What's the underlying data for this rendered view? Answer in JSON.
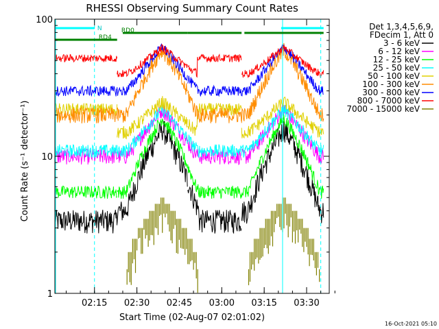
{
  "chart_data": {
    "type": "line",
    "title": "RHESSI Observing Summary Count Rates",
    "xlabel": "Start Time (02-Aug-07 02:01:02)",
    "ylabel": "Count Rate (s⁻¹ detector⁻¹)",
    "y_scale": "log",
    "ylim": [
      1,
      100
    ],
    "xlim_minutes": [
      0,
      97
    ],
    "x_ticks": [
      {
        "label": "02:15",
        "t": 14
      },
      {
        "label": "02:30",
        "t": 29
      },
      {
        "label": "02:45",
        "t": 44
      },
      {
        "label": "03:00",
        "t": 59
      },
      {
        "label": "03:15",
        "t": 74
      },
      {
        "label": "03:30",
        "t": 89
      }
    ],
    "y_ticks": [
      {
        "label": "1",
        "v": 1
      },
      {
        "label": "10",
        "v": 10
      },
      {
        "label": "100",
        "v": 100
      }
    ],
    "legend": {
      "placement": "right",
      "header": [
        "Det 1,3,4,5,6,9,",
        "FDecim 1, Att 0"
      ],
      "entries": [
        {
          "label": "3 - 6 keV",
          "color": "#000000"
        },
        {
          "label": "6 - 12 keV",
          "color": "#ff00ff"
        },
        {
          "label": "12 - 25 keV",
          "color": "#00ff00"
        },
        {
          "label": "25 - 50 keV",
          "color": "#00ffff"
        },
        {
          "label": "50 - 100 keV",
          "color": "#e0d000"
        },
        {
          "label": "100 - 300 keV",
          "color": "#ff8c00"
        },
        {
          "label": "300 - 800 keV",
          "color": "#0000ff"
        },
        {
          "label": "800 - 7000 keV",
          "color": "#ff0000"
        },
        {
          "label": "7000 - 15000 keV",
          "color": "#808000"
        }
      ]
    },
    "series_shape": {
      "peaks_minutes": [
        38,
        81
      ],
      "orbit_segments": [
        [
          0,
          22
        ],
        [
          22,
          47
        ],
        [
          47,
          66
        ],
        [
          66,
          95
        ]
      ]
    },
    "series": [
      {
        "name": "3 - 6 keV",
        "color": "#000000",
        "night_value": 3.4,
        "base_value": 4,
        "peak_value": 16,
        "noise": 0.09
      },
      {
        "name": "6 - 12 keV",
        "color": "#ff00ff",
        "night_value": 10,
        "base_value": 10,
        "peak_value": 22,
        "noise": 0.06
      },
      {
        "name": "12 - 25 keV",
        "color": "#00ff00",
        "night_value": 5.5,
        "base_value": 5.5,
        "peak_value": 19,
        "noise": 0.05
      },
      {
        "name": "25 - 50 keV",
        "color": "#00ffff",
        "night_value": 11,
        "base_value": 11,
        "peak_value": 22,
        "noise": 0.05
      },
      {
        "name": "50 - 100 keV",
        "color": "#e0d000",
        "night_value": 22,
        "base_value": 15,
        "peak_value": 25,
        "noise": 0.05
      },
      {
        "name": "100 - 300 keV",
        "color": "#ff8c00",
        "night_value": 20,
        "base_value": 20,
        "peak_value": 60,
        "noise": 0.06
      },
      {
        "name": "300 - 800 keV",
        "color": "#0000ff",
        "night_value": 30,
        "base_value": 30,
        "peak_value": 63,
        "noise": 0.04
      },
      {
        "name": "800 - 7000 keV",
        "color": "#ff0000",
        "night_value": 52,
        "base_value": 40,
        "peak_value": 62,
        "noise": 0.03
      },
      {
        "name": "7000 - 15000 keV",
        "color": "#808000",
        "night_value": 0,
        "base_value": 1.6,
        "peak_value": 5,
        "noise": 0.0
      }
    ],
    "flag_bars": [
      {
        "label": "N",
        "color": "#00ffff",
        "row": 1,
        "segments": [
          [
            0,
            14
          ],
          [
            80,
            95
          ]
        ]
      },
      {
        "label": "RD0",
        "color": "#008000",
        "row": 2,
        "segments": [
          [
            24,
            47
          ],
          [
            47,
            66
          ],
          [
            67,
            95
          ]
        ]
      },
      {
        "label": "RD4",
        "color": "#008000",
        "row": 3,
        "segments": [
          [
            0,
            22
          ]
        ]
      }
    ],
    "vertical_markers": [
      {
        "t": 14,
        "style": "dashed",
        "color": "#00ffff"
      },
      {
        "t": 80.5,
        "style": "solid",
        "color": "#00ffff"
      },
      {
        "t": 94,
        "style": "dashed",
        "color": "#00ffff"
      }
    ],
    "footer_timestamp": "16-Oct-2021 05:10"
  }
}
